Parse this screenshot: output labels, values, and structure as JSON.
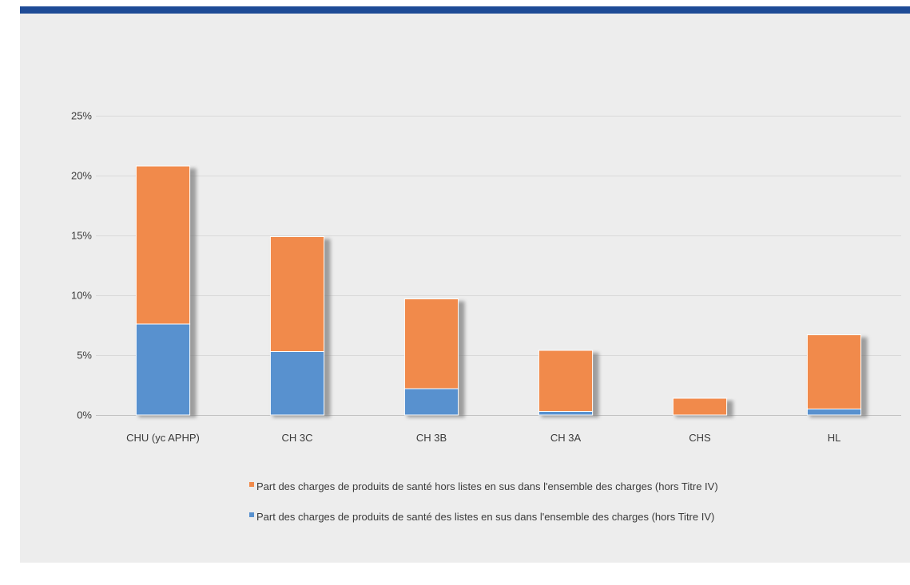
{
  "colors": {
    "header_band": "#1E4B96",
    "panel_background": "#EDEDED"
  },
  "chart_data": {
    "type": "bar",
    "stacked": true,
    "categories": [
      "CHU (yc APHP)",
      "CH 3C",
      "CH 3B",
      "CH 3A",
      "CHS",
      "HL"
    ],
    "series": [
      {
        "name": "Part des charges de produits de santé des listes en sus dans l'ensemble des charges (hors Titre IV)",
        "color": "#5891CF",
        "values": [
          7.6,
          5.3,
          2.2,
          0.3,
          0.0,
          0.5
        ]
      },
      {
        "name": "Part des charges de produits de santé hors listes en sus dans l'ensemble des charges (hors Titre IV)",
        "color": "#F18A4B",
        "values": [
          13.2,
          9.6,
          7.5,
          5.1,
          1.4,
          6.2
        ]
      }
    ],
    "yticks": [
      0,
      5,
      10,
      15,
      20,
      25
    ],
    "ytick_labels": [
      "0%",
      "5%",
      "10%",
      "15%",
      "20%",
      "25%"
    ],
    "ylim": [
      0,
      25
    ],
    "grid": true,
    "legend_position": "bottom"
  }
}
